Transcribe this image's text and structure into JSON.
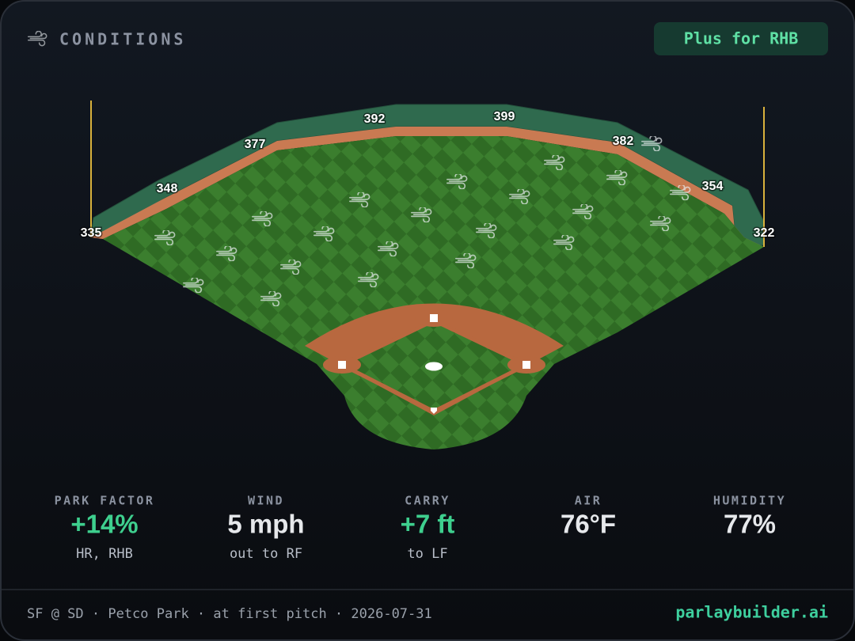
{
  "header": {
    "title": "CONDITIONS",
    "badge": "Plus for RHB"
  },
  "field": {
    "distances": [
      335,
      348,
      377,
      392,
      399,
      382,
      354,
      322
    ]
  },
  "stats": [
    {
      "label": "PARK FACTOR",
      "value": "+14%",
      "note": "HR, RHB"
    },
    {
      "label": "WIND",
      "value": "5 mph",
      "note": "out to RF"
    },
    {
      "label": "CARRY",
      "value": "+7 ft",
      "note": "to LF"
    },
    {
      "label": "AIR",
      "value": "76°F"
    },
    {
      "label": "HUMIDITY",
      "value": "77%"
    }
  ],
  "footer": {
    "info": "SF @ SD · Petco Park · at first pitch · 2026-07-31",
    "brand": "parlaybuilder.ai"
  }
}
